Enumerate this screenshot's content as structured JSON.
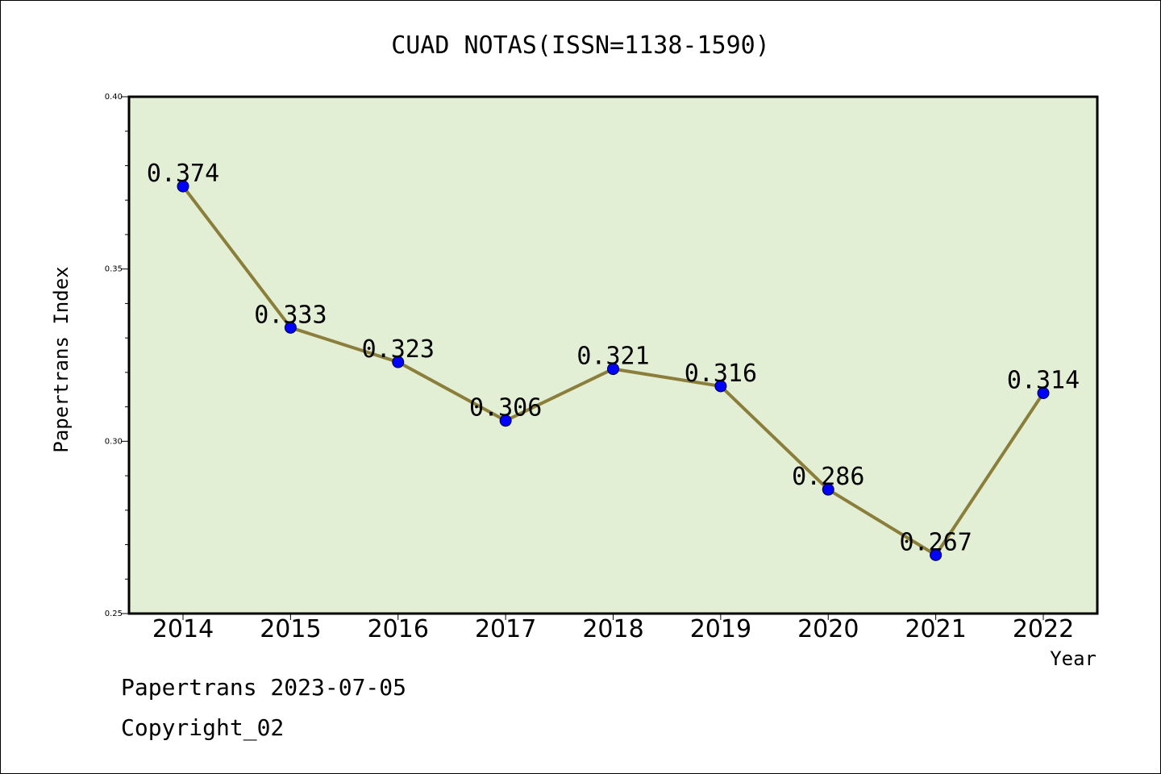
{
  "chart_data": {
    "type": "line",
    "title": "CUAD NOTAS(ISSN=1138-1590)",
    "xlabel": "Year",
    "ylabel": "Papertrans Index",
    "categories": [
      "2014",
      "2015",
      "2016",
      "2017",
      "2018",
      "2019",
      "2020",
      "2021",
      "2022"
    ],
    "series": [
      {
        "values": [
          0.374,
          0.333,
          0.323,
          0.306,
          0.321,
          0.316,
          0.286,
          0.267,
          0.314
        ],
        "labels": [
          "0.374",
          "0.333",
          "0.323",
          "0.306",
          "0.321",
          "0.316",
          "0.286",
          "0.267",
          "0.314"
        ]
      }
    ],
    "ylim": [
      0.25,
      0.4
    ],
    "yticks": [
      "0.25",
      "0.30",
      "0.35",
      "0.40"
    ],
    "grid": false,
    "colors": {
      "plot_background": "#e2efd4",
      "line": "#8b7e3a",
      "marker": "#0000ff"
    }
  },
  "footer": {
    "line1": "Papertrans 2023-07-05",
    "line2": "Copyright_02"
  }
}
